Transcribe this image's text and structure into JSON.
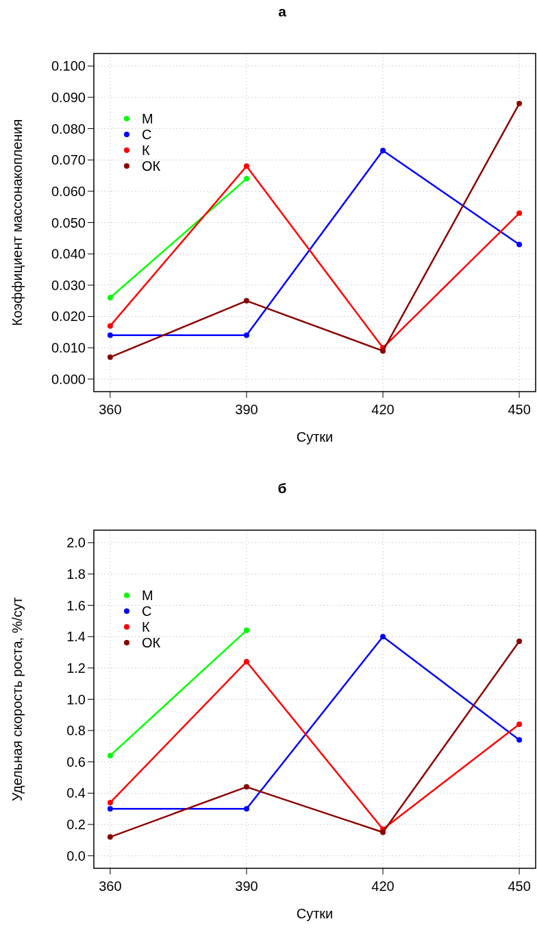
{
  "chart_data": [
    {
      "type": "line",
      "title": "а",
      "xlabel": "Сутки",
      "ylabel": "Коэффициент массонакопления",
      "x": [
        360,
        390,
        420,
        450
      ],
      "xlim": [
        356.4,
        453.6
      ],
      "xticks": [
        360,
        390,
        420,
        450
      ],
      "ylim": [
        -0.004,
        0.104
      ],
      "yticks": [
        {
          "value": 0,
          "label": "0.000"
        },
        {
          "value": 0.01,
          "label": "0.010"
        },
        {
          "value": 0.02,
          "label": "0.020"
        },
        {
          "value": 0.03,
          "label": "0.030"
        },
        {
          "value": 0.04,
          "label": "0.040"
        },
        {
          "value": 0.05,
          "label": "0.050"
        },
        {
          "value": 0.06,
          "label": "0.060"
        },
        {
          "value": 0.07,
          "label": "0.070"
        },
        {
          "value": 0.08,
          "label": "0.080"
        },
        {
          "value": 0.09,
          "label": "0.090"
        },
        {
          "value": 0.1,
          "label": "0.100"
        }
      ],
      "grid": true,
      "legend": "top left",
      "marker": "circle",
      "line_style": "solid",
      "series": [
        {
          "name": "М",
          "color": "#00ff00",
          "values": [
            0.026,
            0.064,
            null,
            null
          ]
        },
        {
          "name": "С",
          "color": "#0000ff",
          "values": [
            0.014,
            0.014,
            0.073,
            0.043
          ]
        },
        {
          "name": "К",
          "color": "#ff0000",
          "values": [
            0.017,
            0.068,
            0.01,
            0.053
          ]
        },
        {
          "name": "ОК",
          "color": "#8b0000",
          "values": [
            0.007,
            0.025,
            0.009,
            0.088
          ]
        }
      ]
    },
    {
      "type": "line",
      "title": "б",
      "xlabel": "Сутки",
      "ylabel": "Удельная скорость роста, %/сут",
      "x": [
        360,
        390,
        420,
        450
      ],
      "xlim": [
        356.4,
        453.6
      ],
      "xticks": [
        360,
        390,
        420,
        450
      ],
      "ylim": [
        -0.08,
        2.08
      ],
      "yticks": [
        {
          "value": 0,
          "label": "0.0"
        },
        {
          "value": 0.2,
          "label": "0.2"
        },
        {
          "value": 0.4,
          "label": "0.4"
        },
        {
          "value": 0.6,
          "label": "0.6"
        },
        {
          "value": 0.8,
          "label": "0.8"
        },
        {
          "value": 1,
          "label": "1.0"
        },
        {
          "value": 1.2,
          "label": "1.2"
        },
        {
          "value": 1.4,
          "label": "1.4"
        },
        {
          "value": 1.6,
          "label": "1.6"
        },
        {
          "value": 1.8,
          "label": "1.8"
        },
        {
          "value": 2,
          "label": "2.0"
        }
      ],
      "grid": true,
      "legend": "top left",
      "marker": "circle",
      "line_style": "solid",
      "series": [
        {
          "name": "М",
          "color": "#00ff00",
          "values": [
            0.64,
            1.44,
            null,
            null
          ]
        },
        {
          "name": "С",
          "color": "#0000ff",
          "values": [
            0.3,
            0.3,
            1.4,
            0.74
          ]
        },
        {
          "name": "К",
          "color": "#ff0000",
          "values": [
            0.34,
            1.24,
            0.17,
            0.84
          ]
        },
        {
          "name": "ОК",
          "color": "#8b0000",
          "values": [
            0.12,
            0.44,
            0.15,
            1.37
          ]
        }
      ]
    }
  ]
}
